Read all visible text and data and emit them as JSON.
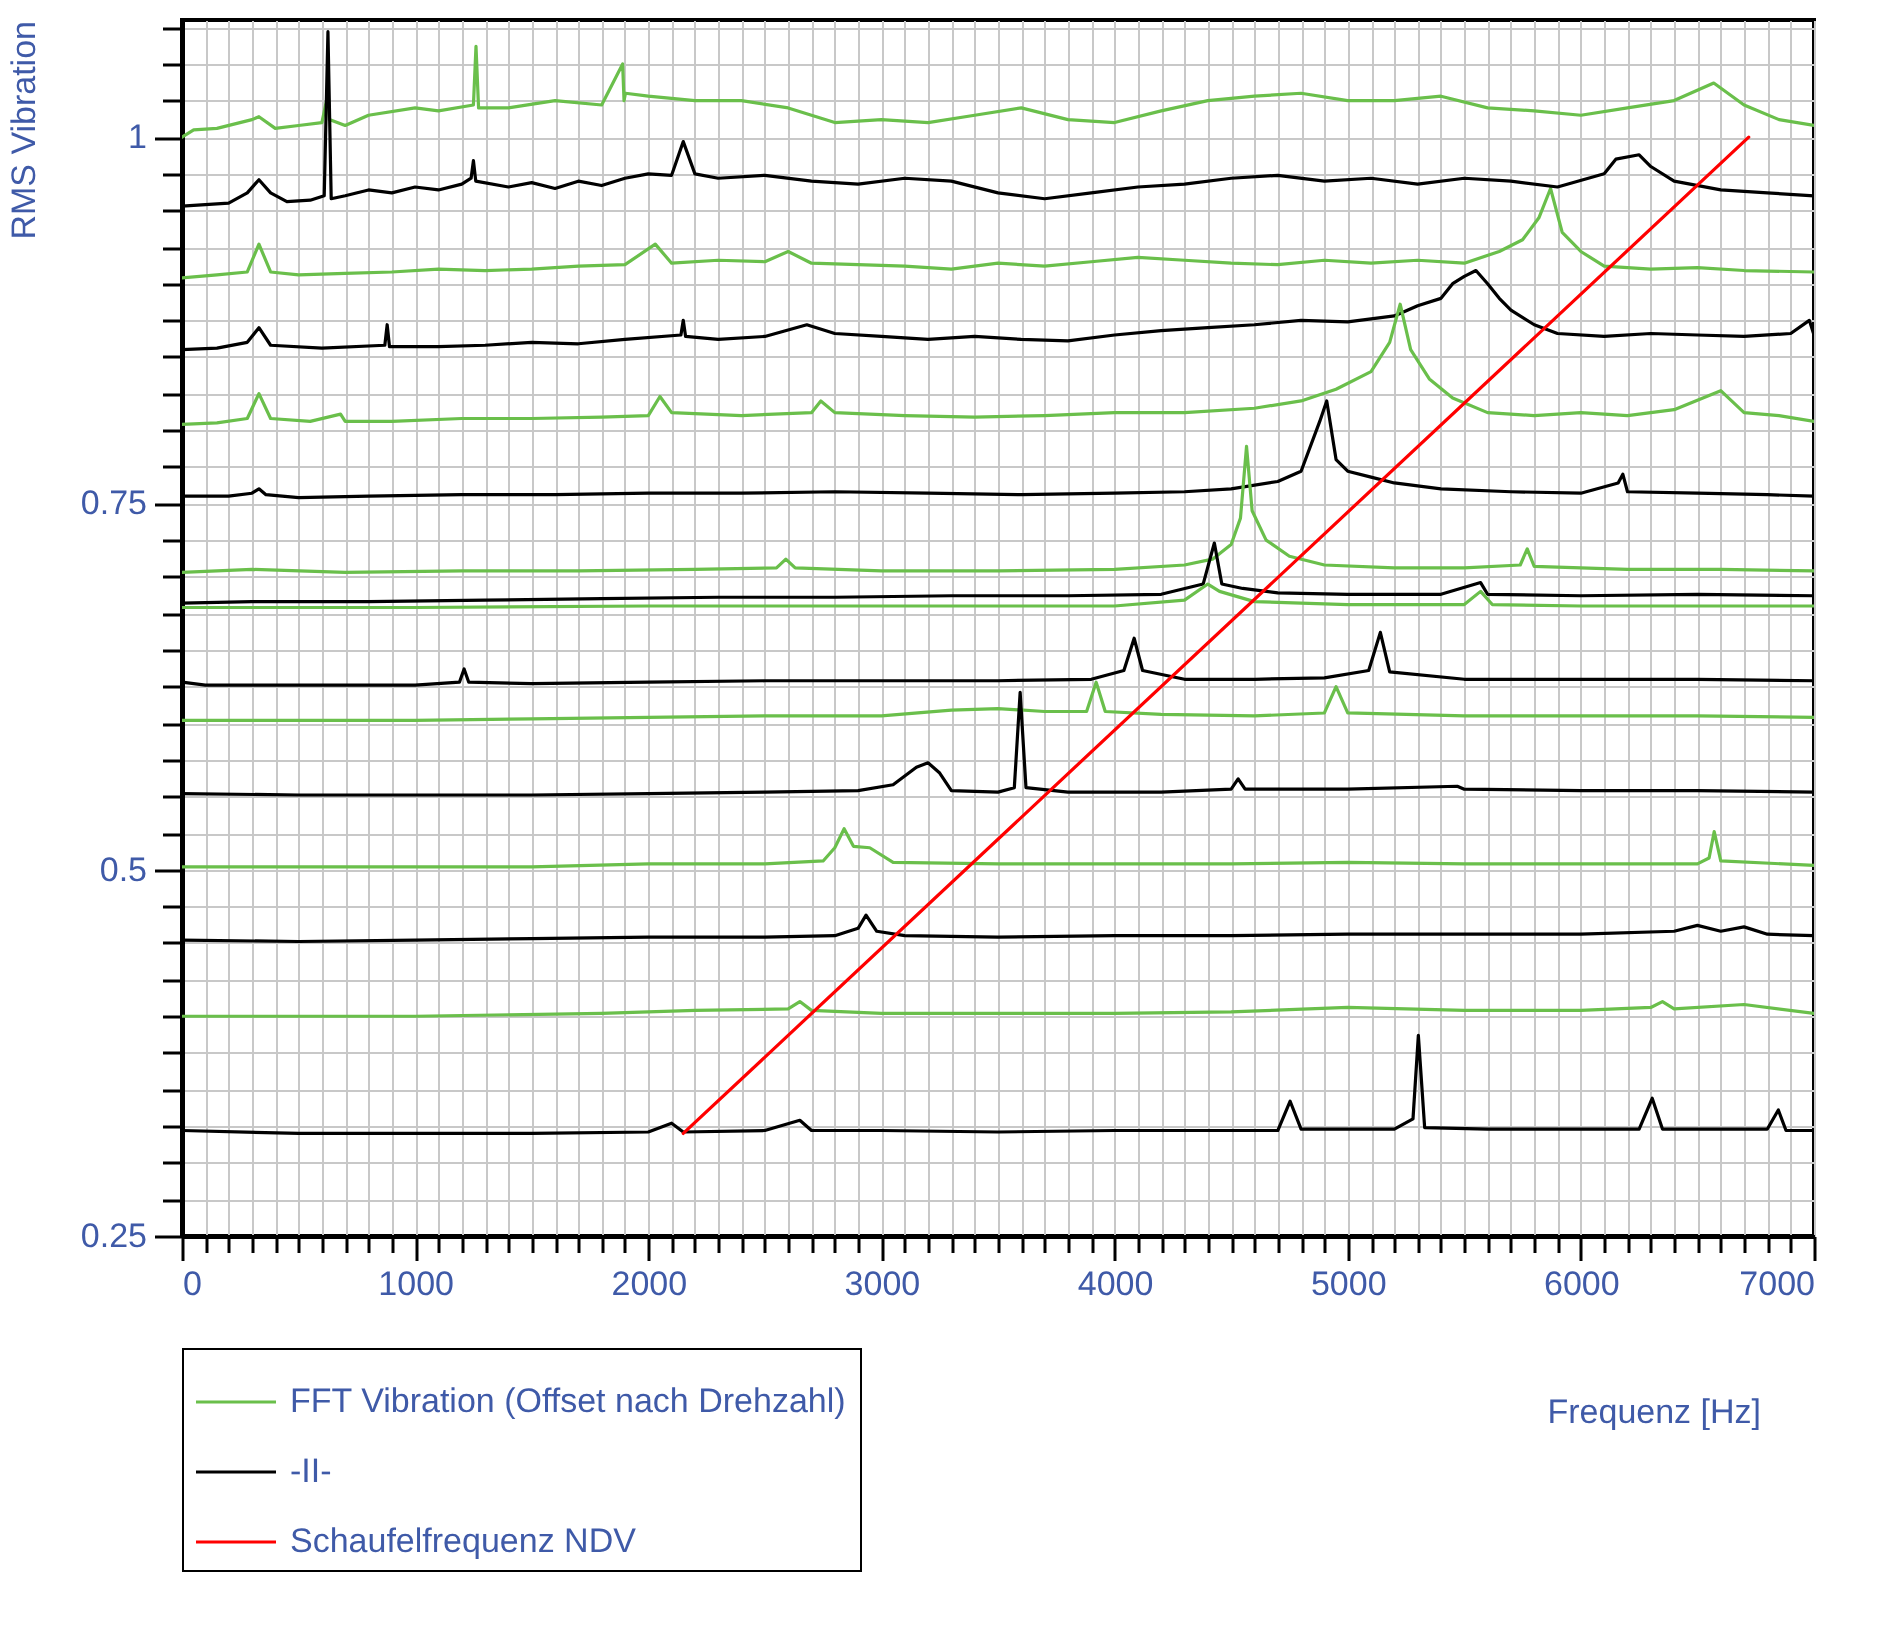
{
  "chart_data": {
    "type": "line",
    "xlabel": "Frequenz [Hz]",
    "ylabel": "RMS Vibration",
    "xlim": [
      0,
      7000
    ],
    "ylim": [
      0.25,
      1.08
    ],
    "grid": true,
    "legend": "bottom left",
    "xticks": [
      0,
      {
        "value": 100,
        "label": null
      },
      {
        "value": 200,
        "label": null
      },
      {
        "value": 300,
        "label": null
      },
      {
        "value": 400,
        "label": null
      },
      {
        "value": 500,
        "label": null
      },
      {
        "value": 600,
        "label": null
      },
      {
        "value": 700,
        "label": null
      },
      {
        "value": 800,
        "label": null
      },
      {
        "value": 900,
        "label": null
      },
      1000,
      {
        "value": 1100,
        "label": null
      },
      {
        "value": 1200,
        "label": null
      },
      {
        "value": 1300,
        "label": null
      },
      {
        "value": 1400,
        "label": null
      },
      {
        "value": 1500,
        "label": null
      },
      {
        "value": 1600,
        "label": null
      },
      {
        "value": 1700,
        "label": null
      },
      {
        "value": 1800,
        "label": null
      },
      {
        "value": 1900,
        "label": null
      },
      2000,
      {
        "value": 2100,
        "label": null
      },
      {
        "value": 2200,
        "label": null
      },
      {
        "value": 2300,
        "label": null
      },
      {
        "value": 2400,
        "label": null
      },
      {
        "value": 2500,
        "label": null
      },
      {
        "value": 2600,
        "label": null
      },
      {
        "value": 2700,
        "label": null
      },
      {
        "value": 2800,
        "label": null
      },
      {
        "value": 2900,
        "label": null
      },
      3000,
      {
        "value": 3100,
        "label": null
      },
      {
        "value": 3200,
        "label": null
      },
      {
        "value": 3300,
        "label": null
      },
      {
        "value": 3400,
        "label": null
      },
      {
        "value": 3500,
        "label": null
      },
      {
        "value": 3600,
        "label": null
      },
      {
        "value": 3700,
        "label": null
      },
      {
        "value": 3800,
        "label": null
      },
      {
        "value": 3900,
        "label": null
      },
      4000,
      {
        "value": 4100,
        "label": null
      },
      {
        "value": 4200,
        "label": null
      },
      {
        "value": 4300,
        "label": null
      },
      {
        "value": 4400,
        "label": null
      },
      {
        "value": 4500,
        "label": null
      },
      {
        "value": 4600,
        "label": null
      },
      {
        "value": 4700,
        "label": null
      },
      {
        "value": 4800,
        "label": null
      },
      {
        "value": 4900,
        "label": null
      },
      5000,
      {
        "value": 5100,
        "label": null
      },
      {
        "value": 5200,
        "label": null
      },
      {
        "value": 5300,
        "label": null
      },
      {
        "value": 5400,
        "label": null
      },
      {
        "value": 5500,
        "label": null
      },
      {
        "value": 5600,
        "label": null
      },
      {
        "value": 5700,
        "label": null
      },
      {
        "value": 5800,
        "label": null
      },
      {
        "value": 5900,
        "label": null
      },
      6000,
      {
        "value": 6100,
        "label": null
      },
      {
        "value": 6200,
        "label": null
      },
      {
        "value": 6300,
        "label": null
      },
      {
        "value": 6400,
        "label": null
      },
      {
        "value": 6500,
        "label": null
      },
      {
        "value": 6600,
        "label": null
      },
      {
        "value": 6700,
        "label": null
      },
      {
        "value": 6800,
        "label": null
      },
      {
        "value": 6900,
        "label": null
      },
      7000
    ],
    "yticks": [
      0.25,
      {
        "value": 0.275,
        "label": null
      },
      {
        "value": 0.3,
        "label": null
      },
      {
        "value": 0.325,
        "label": null
      },
      {
        "value": 0.35,
        "label": null
      },
      {
        "value": 0.375,
        "label": null
      },
      {
        "value": 0.4,
        "label": null
      },
      {
        "value": 0.425,
        "label": null
      },
      {
        "value": 0.45,
        "label": null
      },
      {
        "value": 0.475,
        "label": null
      },
      0.5,
      {
        "value": 0.525,
        "label": null
      },
      {
        "value": 0.55,
        "label": null
      },
      {
        "value": 0.575,
        "label": null
      },
      {
        "value": 0.6,
        "label": null
      },
      {
        "value": 0.625,
        "label": null
      },
      {
        "value": 0.65,
        "label": null
      },
      {
        "value": 0.675,
        "label": null
      },
      {
        "value": 0.7,
        "label": null
      },
      {
        "value": 0.725,
        "label": null
      },
      0.75,
      {
        "value": 0.775,
        "label": null
      },
      {
        "value": 0.8,
        "label": null
      },
      {
        "value": 0.825,
        "label": null
      },
      {
        "value": 0.85,
        "label": null
      },
      {
        "value": 0.875,
        "label": null
      },
      {
        "value": 0.9,
        "label": null
      },
      {
        "value": 0.925,
        "label": null
      },
      {
        "value": 0.95,
        "label": null
      },
      {
        "value": 0.975,
        "label": null
      },
      1,
      {
        "value": 1.025,
        "label": null
      },
      {
        "value": 1.05,
        "label": null
      },
      {
        "value": 1.075,
        "label": null
      }
    ],
    "series": [
      {
        "name": "FFT Vibration (Offset nach Drehzahl)",
        "color": "#6abf4b",
        "x": [
          0,
          50,
          150,
          300,
          330,
          400,
          500,
          600,
          620,
          626,
          632,
          700,
          800,
          1000,
          1100,
          1250,
          1261,
          1272,
          1400,
          1600,
          1800,
          1890,
          1896,
          1902,
          2000,
          2200,
          2400,
          2600,
          2800,
          3000,
          3200,
          3400,
          3600,
          3800,
          4000,
          4200,
          4400,
          4600,
          4800,
          5000,
          5200,
          5400,
          5600,
          5800,
          6000,
          6200,
          6400,
          6570,
          6700,
          6850,
          7000
        ],
        "values": [
          1.0,
          1.005,
          1.006,
          1.012,
          1.014,
          1.006,
          1.008,
          1.01,
          1.025,
          1.035,
          1.012,
          1.008,
          1.015,
          1.02,
          1.018,
          1.022,
          1.062,
          1.02,
          1.02,
          1.025,
          1.022,
          1.05,
          1.025,
          1.03,
          1.028,
          1.025,
          1.025,
          1.02,
          1.01,
          1.012,
          1.01,
          1.015,
          1.02,
          1.012,
          1.01,
          1.018,
          1.025,
          1.028,
          1.03,
          1.025,
          1.025,
          1.028,
          1.02,
          1.018,
          1.015,
          1.02,
          1.025,
          1.037,
          1.022,
          1.012,
          1.008
        ]
      },
      {
        "name": "-II-",
        "color": "#000000",
        "x": [
          0,
          100,
          200,
          280,
          330,
          380,
          450,
          550,
          610,
          626,
          640,
          700,
          800,
          900,
          1000,
          1100,
          1200,
          1240,
          1250,
          1260,
          1400,
          1500,
          1600,
          1700,
          1800,
          1900,
          2000,
          2100,
          2150,
          2200,
          2300,
          2500,
          2700,
          2900,
          3100,
          3300,
          3500,
          3700,
          3900,
          4100,
          4300,
          4500,
          4700,
          4900,
          5100,
          5300,
          5500,
          5700,
          5900,
          6100,
          6150,
          6250,
          6300,
          6400,
          6600,
          6800,
          7000
        ],
        "values": [
          0.953,
          0.954,
          0.955,
          0.962,
          0.971,
          0.962,
          0.956,
          0.957,
          0.96,
          1.072,
          0.958,
          0.96,
          0.964,
          0.962,
          0.966,
          0.964,
          0.968,
          0.972,
          0.984,
          0.97,
          0.966,
          0.969,
          0.965,
          0.97,
          0.967,
          0.972,
          0.975,
          0.974,
          0.997,
          0.975,
          0.972,
          0.974,
          0.97,
          0.968,
          0.972,
          0.97,
          0.962,
          0.958,
          0.962,
          0.966,
          0.968,
          0.972,
          0.974,
          0.97,
          0.972,
          0.968,
          0.972,
          0.97,
          0.966,
          0.975,
          0.985,
          0.988,
          0.98,
          0.97,
          0.964,
          0.962,
          0.96
        ]
      },
      {
        "color": "#6abf4b",
        "x": [
          0,
          150,
          280,
          330,
          380,
          500,
          700,
          900,
          1100,
          1300,
          1500,
          1700,
          1900,
          2030,
          2100,
          2300,
          2500,
          2600,
          2700,
          2900,
          3100,
          3300,
          3500,
          3700,
          3900,
          4100,
          4300,
          4500,
          4700,
          4900,
          5100,
          5300,
          5500,
          5650,
          5750,
          5820,
          5870,
          5920,
          6000,
          6100,
          6300,
          6500,
          6700,
          7000
        ],
        "values": [
          0.904,
          0.906,
          0.908,
          0.927,
          0.908,
          0.906,
          0.907,
          0.908,
          0.91,
          0.909,
          0.91,
          0.912,
          0.913,
          0.927,
          0.914,
          0.916,
          0.915,
          0.922,
          0.914,
          0.913,
          0.912,
          0.91,
          0.914,
          0.912,
          0.915,
          0.918,
          0.916,
          0.914,
          0.913,
          0.916,
          0.914,
          0.916,
          0.914,
          0.922,
          0.93,
          0.945,
          0.965,
          0.935,
          0.922,
          0.912,
          0.91,
          0.911,
          0.909,
          0.908
        ]
      },
      {
        "color": "#000000",
        "x": [
          0,
          150,
          280,
          330,
          380,
          600,
          870,
          880,
          890,
          1100,
          1300,
          1500,
          1700,
          1900,
          2140,
          2150,
          2160,
          2300,
          2500,
          2680,
          2800,
          3000,
          3200,
          3400,
          3600,
          3800,
          4000,
          4200,
          4400,
          4600,
          4800,
          5000,
          5200,
          5300,
          5400,
          5450,
          5500,
          5550,
          5600,
          5650,
          5700,
          5800,
          5900,
          6100,
          6300,
          6500,
          6700,
          6900,
          6980,
          7000
        ],
        "values": [
          0.855,
          0.856,
          0.86,
          0.87,
          0.858,
          0.856,
          0.858,
          0.872,
          0.857,
          0.857,
          0.858,
          0.86,
          0.859,
          0.862,
          0.865,
          0.875,
          0.864,
          0.862,
          0.864,
          0.872,
          0.866,
          0.864,
          0.862,
          0.864,
          0.862,
          0.861,
          0.865,
          0.868,
          0.87,
          0.872,
          0.875,
          0.874,
          0.878,
          0.885,
          0.89,
          0.9,
          0.905,
          0.909,
          0.9,
          0.89,
          0.882,
          0.872,
          0.866,
          0.864,
          0.866,
          0.865,
          0.864,
          0.866,
          0.875,
          0.865
        ]
      },
      {
        "color": "#6abf4b",
        "x": [
          0,
          150,
          280,
          330,
          380,
          550,
          680,
          700,
          900,
          1200,
          1500,
          1800,
          2000,
          2050,
          2100,
          2400,
          2700,
          2740,
          2800,
          3100,
          3400,
          3700,
          4000,
          4300,
          4600,
          4800,
          4950,
          5100,
          5180,
          5225,
          5270,
          5350,
          5450,
          5600,
          5800,
          6000,
          6200,
          6400,
          6600,
          6700,
          6850,
          7000
        ],
        "values": [
          0.804,
          0.805,
          0.808,
          0.825,
          0.808,
          0.806,
          0.811,
          0.806,
          0.806,
          0.808,
          0.808,
          0.809,
          0.81,
          0.823,
          0.812,
          0.81,
          0.812,
          0.82,
          0.812,
          0.81,
          0.809,
          0.81,
          0.812,
          0.812,
          0.815,
          0.82,
          0.828,
          0.84,
          0.86,
          0.886,
          0.855,
          0.835,
          0.822,
          0.812,
          0.81,
          0.812,
          0.81,
          0.814,
          0.827,
          0.812,
          0.81,
          0.806
        ]
      },
      {
        "color": "#000000",
        "x": [
          0,
          200,
          300,
          330,
          360,
          500,
          800,
          1200,
          1600,
          2000,
          2400,
          2800,
          3200,
          3600,
          4000,
          4300,
          4500,
          4700,
          4800,
          4880,
          4910,
          4950,
          5000,
          5100,
          5200,
          5400,
          5700,
          6000,
          6160,
          6180,
          6200,
          6500,
          6800,
          7000
        ],
        "values": [
          0.755,
          0.755,
          0.757,
          0.76,
          0.756,
          0.754,
          0.755,
          0.756,
          0.756,
          0.757,
          0.757,
          0.758,
          0.757,
          0.756,
          0.757,
          0.758,
          0.76,
          0.765,
          0.772,
          0.806,
          0.82,
          0.78,
          0.772,
          0.768,
          0.764,
          0.76,
          0.758,
          0.757,
          0.764,
          0.77,
          0.758,
          0.757,
          0.756,
          0.755
        ]
      },
      {
        "color": "#6abf4b",
        "x": [
          0,
          300,
          700,
          1200,
          1700,
          2200,
          2550,
          2590,
          2630,
          3000,
          3500,
          4000,
          4300,
          4420,
          4500,
          4540,
          4566,
          4590,
          4650,
          4750,
          4900,
          5200,
          5500,
          5740,
          5770,
          5800,
          6200,
          6600,
          7000
        ],
        "values": [
          0.703,
          0.705,
          0.703,
          0.704,
          0.704,
          0.705,
          0.706,
          0.712,
          0.706,
          0.704,
          0.704,
          0.705,
          0.708,
          0.712,
          0.722,
          0.74,
          0.789,
          0.745,
          0.725,
          0.714,
          0.708,
          0.706,
          0.706,
          0.708,
          0.719,
          0.707,
          0.705,
          0.705,
          0.704
        ]
      },
      {
        "color": "#000000",
        "x": [
          0,
          300,
          800,
          1300,
          1800,
          2300,
          2800,
          3300,
          3800,
          4200,
          4380,
          4428,
          4460,
          4550,
          4700,
          5000,
          5400,
          5570,
          5600,
          6000,
          6500,
          7000
        ],
        "values": [
          0.682,
          0.683,
          0.683,
          0.684,
          0.685,
          0.686,
          0.686,
          0.687,
          0.687,
          0.688,
          0.695,
          0.723,
          0.695,
          0.692,
          0.689,
          0.688,
          0.688,
          0.696,
          0.688,
          0.687,
          0.688,
          0.687
        ]
      },
      {
        "color": "#6abf4b",
        "x": [
          0,
          1000,
          2000,
          3000,
          4000,
          4300,
          4400,
          4450,
          4600,
          5000,
          5500,
          5570,
          5620,
          6000,
          7000
        ],
        "values": [
          0.679,
          0.679,
          0.68,
          0.68,
          0.68,
          0.684,
          0.695,
          0.69,
          0.683,
          0.681,
          0.681,
          0.69,
          0.681,
          0.68,
          0.68
        ]
      },
      {
        "color": "#000000",
        "x": [
          0,
          100,
          500,
          1000,
          1190,
          1210,
          1230,
          1500,
          2000,
          2500,
          3000,
          3500,
          3900,
          4040,
          4084,
          4120,
          4300,
          4600,
          4900,
          5090,
          5140,
          5180,
          5500,
          6000,
          6500,
          7000
        ],
        "values": [
          0.628,
          0.626,
          0.626,
          0.626,
          0.628,
          0.637,
          0.628,
          0.627,
          0.628,
          0.629,
          0.629,
          0.629,
          0.63,
          0.636,
          0.658,
          0.636,
          0.63,
          0.63,
          0.631,
          0.636,
          0.662,
          0.635,
          0.63,
          0.63,
          0.63,
          0.629
        ]
      },
      {
        "color": "#6abf4b",
        "x": [
          0,
          500,
          1000,
          1500,
          2000,
          2500,
          3000,
          3300,
          3500,
          3700,
          3880,
          3921,
          3960,
          4200,
          4600,
          4900,
          4950,
          5000,
          5500,
          6000,
          6500,
          7000
        ],
        "values": [
          0.602,
          0.602,
          0.602,
          0.603,
          0.604,
          0.605,
          0.605,
          0.609,
          0.61,
          0.608,
          0.608,
          0.628,
          0.608,
          0.606,
          0.605,
          0.607,
          0.625,
          0.607,
          0.605,
          0.605,
          0.605,
          0.604
        ]
      },
      {
        "color": "#000000",
        "x": [
          0,
          500,
          1000,
          1500,
          2000,
          2500,
          2900,
          3050,
          3150,
          3200,
          3250,
          3300,
          3500,
          3570,
          3595,
          3620,
          3800,
          4200,
          4500,
          4530,
          4560,
          5000,
          5470,
          5500,
          6000,
          6500,
          7000
        ],
        "values": [
          0.552,
          0.551,
          0.551,
          0.551,
          0.552,
          0.553,
          0.554,
          0.558,
          0.57,
          0.573,
          0.566,
          0.554,
          0.553,
          0.556,
          0.621,
          0.556,
          0.553,
          0.553,
          0.555,
          0.562,
          0.555,
          0.555,
          0.557,
          0.555,
          0.554,
          0.554,
          0.553
        ]
      },
      {
        "color": "#6abf4b",
        "x": [
          0,
          500,
          1000,
          1500,
          2000,
          2500,
          2750,
          2800,
          2840,
          2880,
          2950,
          3050,
          3500,
          4000,
          4500,
          5000,
          5500,
          6000,
          6500,
          6550,
          6572,
          6600,
          7000
        ],
        "values": [
          0.502,
          0.502,
          0.502,
          0.502,
          0.504,
          0.504,
          0.506,
          0.515,
          0.528,
          0.516,
          0.515,
          0.505,
          0.504,
          0.504,
          0.504,
          0.505,
          0.504,
          0.504,
          0.504,
          0.508,
          0.526,
          0.506,
          0.503
        ]
      },
      {
        "color": "#000000",
        "x": [
          0,
          500,
          1000,
          1500,
          2000,
          2500,
          2800,
          2900,
          2934,
          2980,
          3100,
          3500,
          4000,
          4500,
          5000,
          5500,
          6000,
          6400,
          6500,
          6600,
          6700,
          6800,
          7000
        ],
        "values": [
          0.452,
          0.451,
          0.452,
          0.453,
          0.454,
          0.454,
          0.455,
          0.46,
          0.469,
          0.458,
          0.455,
          0.454,
          0.455,
          0.455,
          0.456,
          0.456,
          0.456,
          0.458,
          0.462,
          0.458,
          0.461,
          0.456,
          0.455
        ]
      },
      {
        "color": "#6abf4b",
        "x": [
          0,
          1000,
          1800,
          2200,
          2600,
          2650,
          2700,
          3000,
          3500,
          4000,
          4500,
          5000,
          5500,
          6000,
          6300,
          6350,
          6400,
          6700,
          7000
        ],
        "values": [
          0.4,
          0.4,
          0.402,
          0.404,
          0.405,
          0.41,
          0.404,
          0.402,
          0.402,
          0.402,
          0.403,
          0.406,
          0.404,
          0.404,
          0.406,
          0.41,
          0.405,
          0.408,
          0.402
        ]
      },
      {
        "color": "#000000",
        "x": [
          0,
          500,
          1000,
          1500,
          2000,
          2100,
          2150,
          2500,
          2650,
          2700,
          3000,
          3500,
          4000,
          4700,
          4753,
          4800,
          5200,
          5280,
          5303,
          5330,
          5600,
          6250,
          6306,
          6350,
          6800,
          6847,
          6880,
          7000
        ],
        "values": [
          0.322,
          0.32,
          0.32,
          0.32,
          0.321,
          0.327,
          0.321,
          0.322,
          0.329,
          0.322,
          0.322,
          0.321,
          0.322,
          0.322,
          0.342,
          0.323,
          0.323,
          0.33,
          0.387,
          0.324,
          0.323,
          0.323,
          0.344,
          0.323,
          0.323,
          0.336,
          0.322,
          0.322
        ]
      },
      {
        "name": "Schaufelfrequenz NDV",
        "color": "#ff0000",
        "x": [
          2150,
          6720
        ],
        "values": [
          0.32,
          1.0
        ]
      }
    ]
  }
}
